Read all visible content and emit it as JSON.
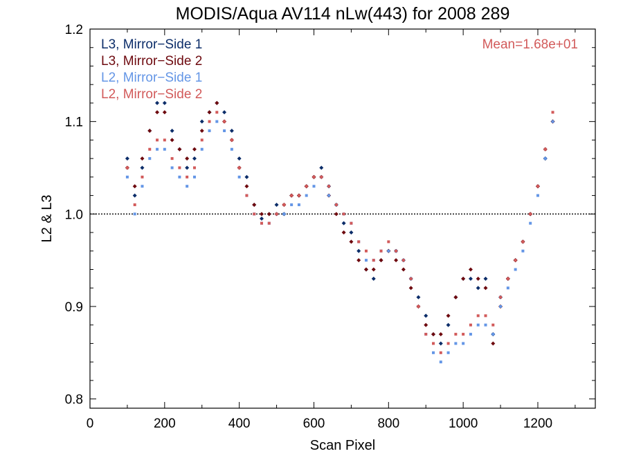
{
  "chart_data": {
    "type": "scatter",
    "title": "MODIS/Aqua AV114 nLw(443) for 2008 289",
    "xlabel": "Scan Pixel",
    "ylabel": "L2 & L3",
    "xlim": [
      0,
      1354
    ],
    "ylim": [
      0.79,
      1.2
    ],
    "xticks": [
      "0",
      "200",
      "400",
      "600",
      "800",
      "1000",
      "1200"
    ],
    "yticks": [
      "0.8",
      "0.9",
      "1.0",
      "1.1",
      "1.2"
    ],
    "reference_line": 1.0,
    "annotation": "Mean=1.68e+01",
    "annotation_color": "#d25a5a",
    "legend_position": "top-left",
    "series": [
      {
        "name": "L3, Mirror−Side 1",
        "color": "#0c2d69",
        "marker": "diamond",
        "x": [
          100,
          120,
          140,
          160,
          180,
          200,
          220,
          240,
          260,
          280,
          300,
          320,
          340,
          360,
          380,
          400,
          420,
          440,
          460,
          480,
          500,
          520,
          540,
          560,
          580,
          600,
          620,
          640,
          660,
          680,
          700,
          720,
          740,
          760,
          780,
          800,
          820,
          840,
          860,
          880,
          900,
          920,
          940,
          960,
          980,
          1000,
          1020,
          1040,
          1060,
          1080,
          1100,
          1120,
          1140,
          1160,
          1180,
          1200,
          1220,
          1240
        ],
        "y": [
          1.06,
          1.02,
          1.05,
          1.09,
          1.12,
          1.12,
          1.09,
          1.07,
          1.05,
          1.06,
          1.1,
          1.11,
          1.12,
          1.11,
          1.09,
          1.06,
          1.04,
          1.01,
          0.995,
          1.0,
          1.01,
          1.0,
          1.02,
          1.02,
          1.03,
          1.04,
          1.05,
          1.03,
          1.01,
          0.99,
          0.98,
          0.96,
          0.94,
          0.93,
          0.95,
          0.96,
          0.96,
          0.95,
          0.93,
          0.91,
          0.89,
          0.87,
          0.86,
          0.88,
          0.91,
          0.93,
          0.93,
          0.92,
          0.93,
          0.87,
          0.91,
          0.93,
          0.95,
          0.97,
          1.0,
          1.03,
          1.06,
          1.1
        ]
      },
      {
        "name": "L3, Mirror−Side 2",
        "color": "#6e0a0f",
        "marker": "diamond",
        "x": [
          100,
          120,
          140,
          160,
          180,
          200,
          220,
          240,
          260,
          280,
          300,
          320,
          340,
          360,
          380,
          400,
          420,
          440,
          460,
          480,
          500,
          520,
          540,
          560,
          580,
          600,
          620,
          640,
          660,
          680,
          700,
          720,
          740,
          760,
          780,
          800,
          820,
          840,
          860,
          880,
          900,
          920,
          940,
          960,
          980,
          1000,
          1020,
          1040,
          1060,
          1080,
          1100,
          1120,
          1140,
          1160,
          1180,
          1200,
          1220,
          1240
        ],
        "y": [
          1.05,
          1.03,
          1.06,
          1.09,
          1.11,
          1.11,
          1.08,
          1.07,
          1.06,
          1.07,
          1.09,
          1.11,
          1.12,
          1.1,
          1.08,
          1.05,
          1.03,
          1.01,
          1.0,
          1.0,
          1.0,
          1.01,
          1.02,
          1.02,
          1.03,
          1.04,
          1.04,
          1.02,
          1.0,
          0.98,
          0.97,
          0.95,
          0.94,
          0.94,
          0.95,
          0.96,
          0.95,
          0.94,
          0.92,
          0.9,
          0.88,
          0.87,
          0.87,
          0.89,
          0.91,
          0.93,
          0.94,
          0.93,
          0.92,
          0.86,
          0.9,
          0.93,
          0.95,
          0.97,
          1.0,
          1.03,
          1.07,
          1.1
        ]
      },
      {
        "name": "L2, Mirror−Side 1",
        "color": "#6496e6",
        "marker": "square",
        "x": [
          100,
          120,
          140,
          160,
          180,
          200,
          220,
          240,
          260,
          280,
          300,
          320,
          340,
          360,
          380,
          400,
          420,
          440,
          460,
          480,
          500,
          520,
          540,
          560,
          580,
          600,
          620,
          640,
          660,
          680,
          700,
          720,
          740,
          760,
          780,
          800,
          820,
          840,
          860,
          880,
          900,
          920,
          940,
          960,
          980,
          1000,
          1020,
          1040,
          1060,
          1080,
          1100,
          1120,
          1140,
          1160,
          1180,
          1200,
          1220,
          1240
        ],
        "y": [
          1.04,
          1.0,
          1.03,
          1.06,
          1.07,
          1.07,
          1.05,
          1.04,
          1.03,
          1.04,
          1.07,
          1.09,
          1.1,
          1.09,
          1.07,
          1.04,
          1.02,
          1.0,
          0.99,
          0.99,
          1.0,
          1.0,
          1.01,
          1.01,
          1.02,
          1.03,
          1.04,
          1.02,
          1.01,
          1.0,
          0.99,
          0.97,
          0.95,
          0.95,
          0.96,
          0.96,
          0.96,
          0.95,
          0.93,
          0.9,
          0.87,
          0.85,
          0.84,
          0.85,
          0.86,
          0.86,
          0.87,
          0.88,
          0.88,
          0.87,
          0.9,
          0.92,
          0.94,
          0.96,
          0.99,
          1.02,
          1.06,
          1.1
        ]
      },
      {
        "name": "L2, Mirror−Side 2",
        "color": "#d25a5a",
        "marker": "square",
        "x": [
          100,
          120,
          140,
          160,
          180,
          200,
          220,
          240,
          260,
          280,
          300,
          320,
          340,
          360,
          380,
          400,
          420,
          440,
          460,
          480,
          500,
          520,
          540,
          560,
          580,
          600,
          620,
          640,
          660,
          680,
          700,
          720,
          740,
          760,
          780,
          800,
          820,
          840,
          860,
          880,
          900,
          920,
          940,
          960,
          980,
          1000,
          1020,
          1040,
          1060,
          1080,
          1100,
          1120,
          1140,
          1160,
          1180,
          1200,
          1220,
          1240
        ],
        "y": [
          1.05,
          1.01,
          1.04,
          1.07,
          1.08,
          1.08,
          1.06,
          1.05,
          1.04,
          1.05,
          1.08,
          1.1,
          1.11,
          1.1,
          1.08,
          1.05,
          1.02,
          1.0,
          0.99,
          0.99,
          1.0,
          1.01,
          1.02,
          1.02,
          1.03,
          1.04,
          1.04,
          1.03,
          1.01,
          1.0,
          0.99,
          0.97,
          0.96,
          0.95,
          0.96,
          0.97,
          0.96,
          0.95,
          0.93,
          0.9,
          0.87,
          0.86,
          0.85,
          0.86,
          0.87,
          0.87,
          0.88,
          0.89,
          0.89,
          0.88,
          0.91,
          0.93,
          0.95,
          0.97,
          1.0,
          1.03,
          1.07,
          1.11
        ]
      }
    ]
  }
}
